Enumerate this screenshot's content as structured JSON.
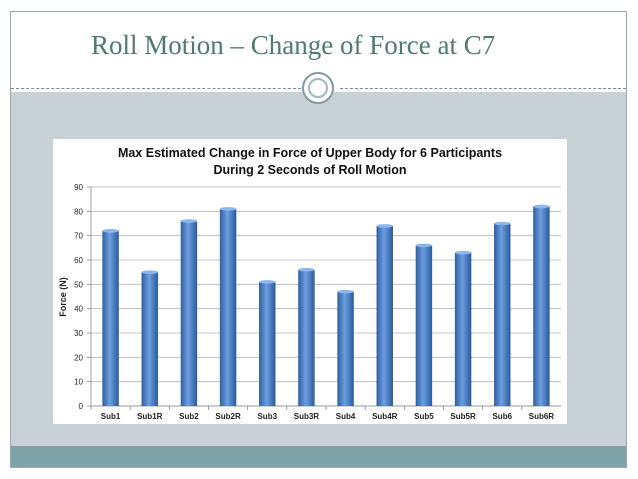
{
  "slide": {
    "title": "Roll Motion – Change of Force at C7"
  },
  "chart_data": {
    "type": "bar",
    "title": "Max Estimated Change in Force of Upper Body for 6 Participants",
    "subtitle": "During 2 Seconds of Roll Motion",
    "xlabel": "",
    "ylabel": "Force (N)",
    "ylim": [
      0,
      90
    ],
    "yticks": [
      0,
      10,
      20,
      30,
      40,
      50,
      60,
      70,
      80,
      90
    ],
    "grid": true,
    "categories": [
      "Sub1",
      "Sub1R",
      "Sub2",
      "Sub2R",
      "Sub3",
      "Sub3R",
      "Sub4",
      "Sub4R",
      "Sub5",
      "Sub5R",
      "Sub6",
      "Sub6R"
    ],
    "values": [
      72,
      55,
      76,
      81,
      51,
      56,
      47,
      74,
      66,
      63,
      75,
      82
    ],
    "bar_color": "#4a7fc8"
  }
}
